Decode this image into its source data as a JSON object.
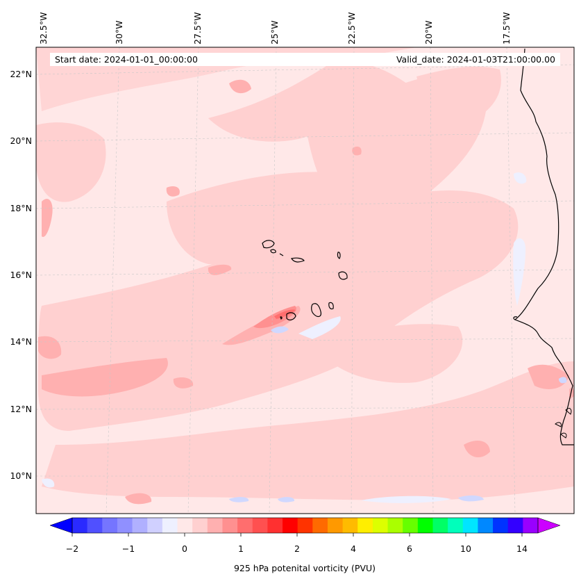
{
  "header": {
    "start_date": "Start date: 2024-01-01_00:00:00",
    "valid_date": "Valid_date: 2024-01-03T21:00:00.00"
  },
  "longitude_labels": [
    "32.5°W",
    "30°W",
    "27.5°W",
    "25°W",
    "22.5°W",
    "20°W",
    "17.5°W"
  ],
  "latitude_labels": [
    "22°N",
    "20°N",
    "18°N",
    "16°N",
    "14°N",
    "12°N",
    "10°N"
  ],
  "colorbar": {
    "label": "925 hPa potenital vorticity (PVU)",
    "tick_labels": [
      "−2",
      "−1",
      "0",
      "1",
      "2",
      "4",
      "6",
      "10",
      "14"
    ],
    "colors": [
      "#0000ff",
      "#2a2aff",
      "#5050ff",
      "#7575ff",
      "#9090ff",
      "#b0b0ff",
      "#d0d0ff",
      "#eef0ff",
      "#ffe8e8",
      "#ffd0d0",
      "#ffb0b0",
      "#ff9090",
      "#ff6e6e",
      "#ff5050",
      "#ff3030",
      "#ff0000",
      "#ff3300",
      "#ff6a00",
      "#ff9900",
      "#ffbb00",
      "#ffee00",
      "#ddff00",
      "#aaff00",
      "#66ff00",
      "#00ff00",
      "#00ff66",
      "#00ffbb",
      "#00e5ff",
      "#0088ff",
      "#0033ff",
      "#3300ff",
      "#9900ff",
      "#cc00ff"
    ]
  }
}
